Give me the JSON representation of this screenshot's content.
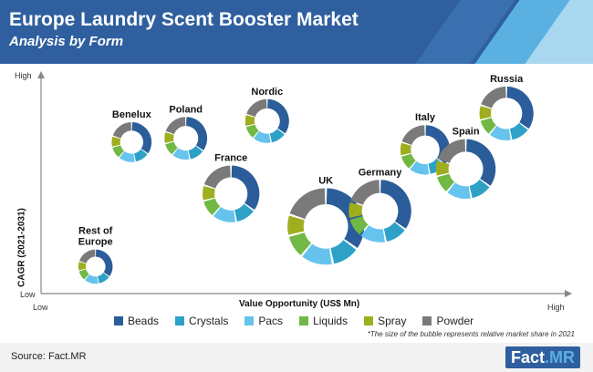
{
  "header": {
    "title": "Europe Laundry Scent Booster Market",
    "subtitle": "Analysis by Form"
  },
  "note": "*The size of the bubble represents relative market share in 2021",
  "source": "Source: Fact.MR",
  "logo": {
    "main": "Fact",
    "accent": ".MR"
  },
  "colors": {
    "Beads": "#2a5d99",
    "Crystals": "#2ea1c7",
    "Pacs": "#66c3ee",
    "Liquids": "#71b844",
    "Spray": "#9fae1f",
    "Powder": "#7a7a7a"
  },
  "chart_data": {
    "type": "bubble-donut",
    "xlabel": "Value Opportunity (US$ Mn)",
    "ylabel": "CAGR (2021-2031)",
    "x_ticks": {
      "low": "Low",
      "high": "High"
    },
    "y_ticks": {
      "low": "Low",
      "high": "High"
    },
    "legend": [
      "Beads",
      "Crystals",
      "Pacs",
      "Liquids",
      "Spray",
      "Powder"
    ],
    "segments_share": [
      0.35,
      0.12,
      0.14,
      0.1,
      0.09,
      0.2
    ],
    "bubbles": [
      {
        "name": "Rest of Europe",
        "x": 0.06,
        "y": 0.06,
        "size": 0.25
      },
      {
        "name": "Benelux",
        "x": 0.14,
        "y": 0.71,
        "size": 0.35
      },
      {
        "name": "Poland",
        "x": 0.26,
        "y": 0.73,
        "size": 0.4
      },
      {
        "name": "Nordic",
        "x": 0.44,
        "y": 0.82,
        "size": 0.42
      },
      {
        "name": "France",
        "x": 0.36,
        "y": 0.44,
        "size": 0.65
      },
      {
        "name": "UK",
        "x": 0.57,
        "y": 0.27,
        "size": 1.0
      },
      {
        "name": "Germany",
        "x": 0.69,
        "y": 0.35,
        "size": 0.75
      },
      {
        "name": "Italy",
        "x": 0.79,
        "y": 0.67,
        "size": 0.52
      },
      {
        "name": "Spain",
        "x": 0.88,
        "y": 0.57,
        "size": 0.7
      },
      {
        "name": "Russia",
        "x": 0.97,
        "y": 0.86,
        "size": 0.6
      }
    ]
  }
}
